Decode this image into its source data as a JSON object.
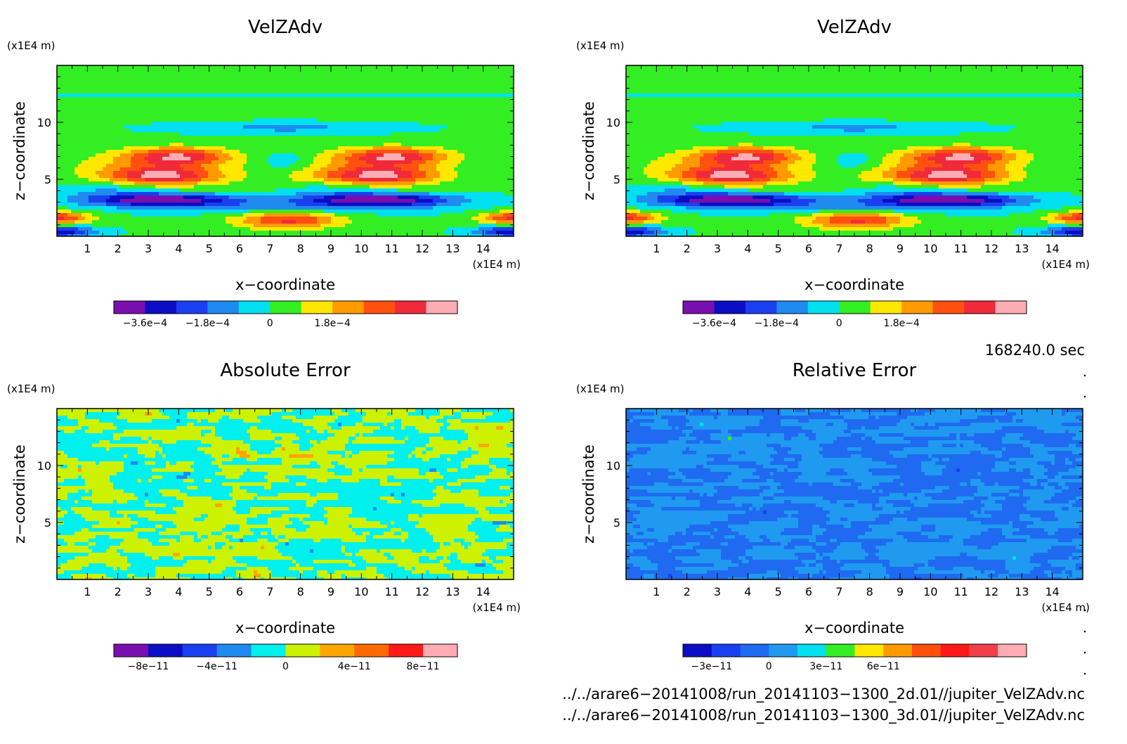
{
  "chart_data": [
    {
      "type": "heatmap",
      "title": "VelZAdv",
      "xlabel": "x−coordinate",
      "ylabel": "z−coordinate",
      "x_unit": "(x1E4 m)",
      "y_unit": "(x1E4 m)",
      "xlim": [
        0,
        15
      ],
      "ylim": [
        0,
        15
      ],
      "x_ticks": [
        "1",
        "2",
        "3",
        "4",
        "5",
        "6",
        "7",
        "8",
        "9",
        "10",
        "11",
        "12",
        "13",
        "14"
      ],
      "y_ticks": [
        "5",
        "10"
      ],
      "colorbar": {
        "labels": [
          "−3.6e−4",
          "−1.8e−4",
          "0",
          "1.8e−4"
        ],
        "label_values": [
          -0.00036,
          -0.00018,
          0,
          0.00018
        ],
        "levels": [
          -0.0004,
          -0.00036,
          -0.00027,
          -0.00018,
          -9e-05,
          0,
          9e-05,
          0.00018,
          0.00027,
          0.00036,
          0.00045
        ],
        "colors": [
          "#7a0fb0",
          "#0b0dc4",
          "#1a3ff0",
          "#1f8af0",
          "#00e0f0",
          "#33ee22",
          "#ffe800",
          "#ff9a00",
          "#ff5010",
          "#f02a3a",
          "#ffacb4"
        ]
      },
      "pattern": "velz"
    },
    {
      "type": "heatmap",
      "title": "VelZAdv",
      "xlabel": "x−coordinate",
      "ylabel": "z−coordinate",
      "x_unit": "(x1E4 m)",
      "y_unit": "(x1E4 m)",
      "xlim": [
        0,
        15
      ],
      "ylim": [
        0,
        15
      ],
      "x_ticks": [
        "1",
        "2",
        "3",
        "4",
        "5",
        "6",
        "7",
        "8",
        "9",
        "10",
        "11",
        "12",
        "13",
        "14"
      ],
      "y_ticks": [
        "5",
        "10"
      ],
      "colorbar": {
        "labels": [
          "−3.6e−4",
          "−1.8e−4",
          "0",
          "1.8e−4"
        ],
        "label_values": [
          -0.00036,
          -0.00018,
          0,
          0.00018
        ],
        "levels": [
          -0.0004,
          -0.00036,
          -0.00027,
          -0.00018,
          -9e-05,
          0,
          9e-05,
          0.00018,
          0.00027,
          0.00036,
          0.00045
        ],
        "colors": [
          "#7a0fb0",
          "#0b0dc4",
          "#1a3ff0",
          "#1f8af0",
          "#00e0f0",
          "#33ee22",
          "#ffe800",
          "#ff9a00",
          "#ff5010",
          "#f02a3a",
          "#ffacb4"
        ]
      },
      "pattern": "velz"
    },
    {
      "type": "heatmap",
      "title": "Absolute Error",
      "xlabel": "x−coordinate",
      "ylabel": "z−coordinate",
      "x_unit": "(x1E4 m)",
      "y_unit": "(x1E4 m)",
      "xlim": [
        0,
        15
      ],
      "ylim": [
        0,
        15
      ],
      "x_ticks": [
        "1",
        "2",
        "3",
        "4",
        "5",
        "6",
        "7",
        "8",
        "9",
        "10",
        "11",
        "12",
        "13",
        "14"
      ],
      "y_ticks": [
        "5",
        "10"
      ],
      "colorbar": {
        "labels": [
          "−8e−11",
          "−4e−11",
          "0",
          "4e−11",
          "8e−11"
        ],
        "label_values": [
          -8e-11,
          -4e-11,
          0,
          4e-11,
          8e-11
        ],
        "levels": [
          -1e-10,
          -8e-11,
          -6e-11,
          -4e-11,
          -2e-11,
          0,
          2e-11,
          4e-11,
          6e-11,
          8e-11,
          1e-10
        ],
        "colors": [
          "#7a0fb0",
          "#0b0dc4",
          "#1a3ff0",
          "#1f8af0",
          "#00f0ee",
          "#ccf200",
          "#ffa500",
          "#ff6a00",
          "#ff1a1a",
          "#ffacb4"
        ]
      },
      "pattern": "abs"
    },
    {
      "type": "heatmap",
      "title": "Relative Error",
      "xlabel": "x−coordinate",
      "ylabel": "z−coordinate",
      "x_unit": "(x1E4 m)",
      "y_unit": "(x1E4 m)",
      "xlim": [
        0,
        15
      ],
      "ylim": [
        0,
        15
      ],
      "x_ticks": [
        "1",
        "2",
        "3",
        "4",
        "5",
        "6",
        "7",
        "8",
        "9",
        "10",
        "11",
        "12",
        "13",
        "14"
      ],
      "y_ticks": [
        "5",
        "10"
      ],
      "colorbar": {
        "labels": [
          "−3e−11",
          "0",
          "3e−11",
          "6e−11"
        ],
        "label_values": [
          -3e-11,
          0,
          3e-11,
          6e-11
        ],
        "levels": [
          -4.5e-11,
          -3e-11,
          -1.5e-11,
          0,
          1.5e-11,
          3e-11,
          4.5e-11,
          6e-11,
          7.5e-11
        ],
        "colors": [
          "#0b0dc4",
          "#1a3ff0",
          "#1f6af0",
          "#1f9af0",
          "#00e0f0",
          "#33ee22",
          "#ffe800",
          "#ff9a00",
          "#ff5010",
          "#ff1a1a",
          "#f0404a",
          "#ffacb4"
        ]
      },
      "pattern": "rel"
    }
  ],
  "time_label": "168240.0 sec",
  "files": [
    "../../arare6−20141008/run_20141103−1300_2d.01//jupiter_VelZAdv.nc",
    "../../arare6−20141008/run_20141103−1300_3d.01//jupiter_VelZAdv.nc"
  ]
}
